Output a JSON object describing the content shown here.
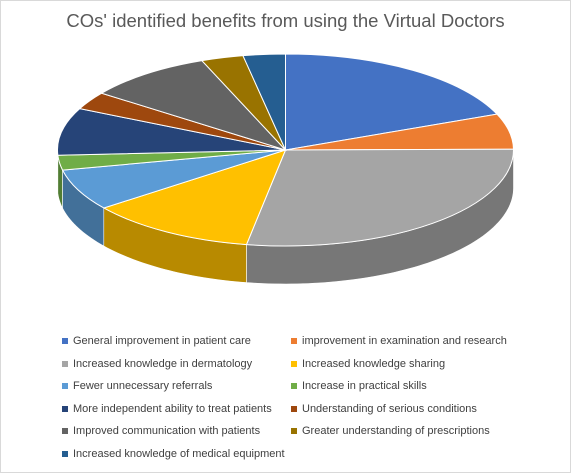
{
  "chart_data": {
    "type": "pie",
    "title": "COs' identified benefits from using the Virtual Doctors",
    "style": "3d",
    "categories": [
      "General improvement in patient care",
      "improvement in examination and research",
      "Increased knowledge in dermatology",
      "Increased knowledge sharing",
      "Fewer unnecessary referrals",
      "Increase in practical skills",
      "More independent ability to treat patients",
      "Understanding of serious conditions",
      "Improved communication with patients",
      "Greater understanding of prescriptions",
      "Increased knowledge of medical equipment"
    ],
    "values": [
      19,
      6,
      28,
      12,
      7,
      2.5,
      8,
      3,
      9,
      3,
      3
    ],
    "colors": [
      "#4472c4",
      "#ed7d31",
      "#a5a5a5",
      "#ffc000",
      "#5b9bd5",
      "#70ad47",
      "#264478",
      "#9e480e",
      "#636363",
      "#997300",
      "#255e91"
    ],
    "legend_position": "bottom"
  }
}
